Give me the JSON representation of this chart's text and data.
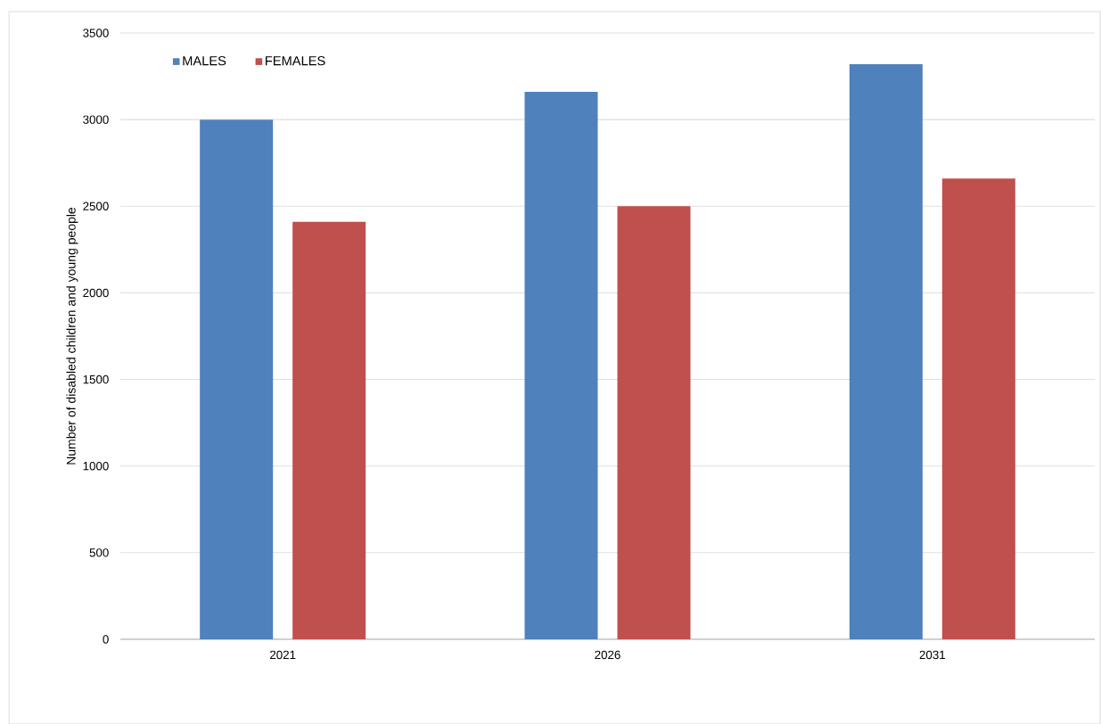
{
  "chart_data": {
    "type": "bar",
    "ylabel": "Number of disabled children and young people",
    "categories": [
      "2021",
      "2026",
      "2031"
    ],
    "series": [
      {
        "name": "MALES",
        "color": "#4f81bd",
        "values": [
          3000,
          3160,
          3320
        ]
      },
      {
        "name": "FEMALES",
        "color": "#c0504d",
        "values": [
          2410,
          2500,
          2660
        ]
      }
    ],
    "ylim": [
      0,
      3500
    ],
    "yticks": [
      0,
      500,
      1000,
      1500,
      2000,
      2500,
      3000,
      3500
    ],
    "grid": "y",
    "legend": "top left"
  }
}
